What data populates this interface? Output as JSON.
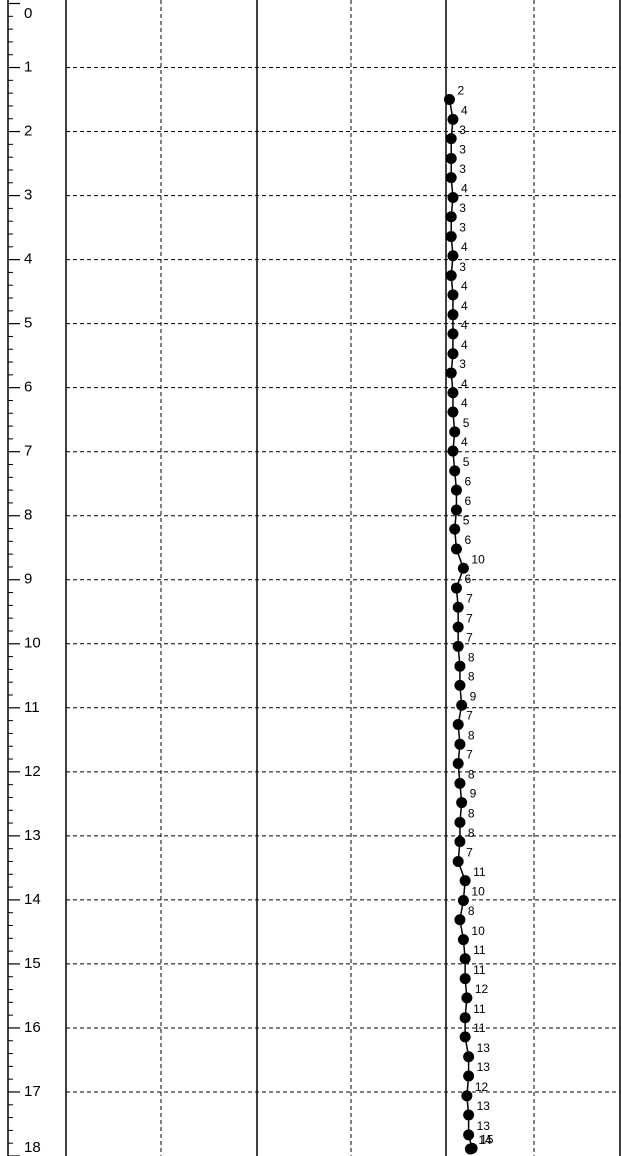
{
  "chart_data": {
    "type": "line",
    "ylim": [
      0,
      18
    ],
    "yticks": [
      0,
      1,
      2,
      3,
      4,
      5,
      6,
      7,
      8,
      9,
      10,
      11,
      12,
      13,
      14,
      15,
      16,
      17,
      18
    ],
    "xlim": [
      0,
      100
    ],
    "grid": true,
    "color": "#000000",
    "series": [
      {
        "depth": [
          1.5,
          1.81,
          2.11,
          2.42,
          2.72,
          3.03,
          3.33,
          3.64,
          3.94,
          4.25,
          4.55,
          4.86,
          5.16,
          5.47,
          5.77,
          6.08,
          6.38,
          6.69,
          6.99,
          7.3,
          7.6,
          7.91,
          8.21,
          8.52,
          8.82,
          9.13,
          9.43,
          9.74,
          10.04,
          10.35,
          10.65,
          10.96,
          11.26,
          11.57,
          11.87,
          12.18,
          12.48,
          12.79,
          13.09,
          13.4,
          13.7,
          14.01,
          14.31,
          14.62,
          14.92,
          15.23,
          15.53,
          15.84,
          16.14,
          16.45,
          16.75,
          17.06,
          17.36,
          17.67,
          17.88,
          17.89
        ],
        "values": [
          2,
          4,
          3,
          3,
          3,
          4,
          3,
          3,
          4,
          3,
          4,
          4,
          4,
          4,
          3,
          4,
          4,
          5,
          4,
          5,
          6,
          6,
          5,
          6,
          10,
          6,
          7,
          7,
          7,
          8,
          8,
          9,
          7,
          8,
          7,
          8,
          9,
          8,
          8,
          7,
          11,
          10,
          8,
          10,
          11,
          11,
          12,
          11,
          11,
          13,
          13,
          12,
          13,
          13,
          15,
          14
        ]
      }
    ]
  }
}
